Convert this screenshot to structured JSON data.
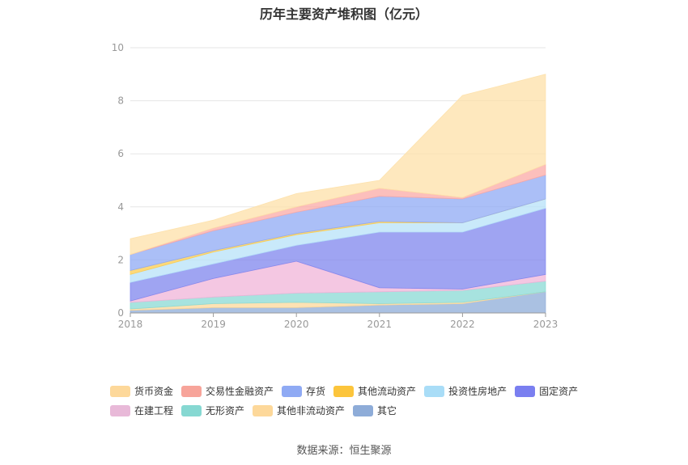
{
  "title": "历年主要资产堆积图（亿元）",
  "source": "数据来源：恒生聚源",
  "chart_data": {
    "type": "area",
    "stacked": true,
    "categories": [
      "2018",
      "2019",
      "2020",
      "2021",
      "2022",
      "2023"
    ],
    "ylim": [
      0,
      10
    ],
    "yticks": [
      "0",
      "2",
      "4",
      "6",
      "8",
      "10"
    ],
    "grid": true,
    "legend_position": "bottom",
    "series": [
      {
        "name": "其它",
        "color": "#8eacd8",
        "values": [
          0.1,
          0.2,
          0.2,
          0.3,
          0.35,
          0.8
        ]
      },
      {
        "name": "其他非流动资产",
        "color": "#fdd89a",
        "values": [
          0.05,
          0.15,
          0.2,
          0.05,
          0.05,
          0.0
        ]
      },
      {
        "name": "无形资产",
        "color": "#8ad9d4",
        "values": [
          0.25,
          0.25,
          0.35,
          0.45,
          0.45,
          0.4
        ]
      },
      {
        "name": "在建工程",
        "color": "#f0b4d8",
        "values": [
          0.05,
          0.7,
          1.2,
          0.15,
          0.05,
          0.25
        ]
      },
      {
        "name": "固定资产",
        "color": "#7f86ee",
        "values": [
          0.7,
          0.55,
          0.6,
          2.1,
          2.15,
          2.5
        ]
      },
      {
        "name": "投资性房地产",
        "color": "#b7e1f8",
        "values": [
          0.3,
          0.45,
          0.4,
          0.35,
          0.35,
          0.35
        ]
      },
      {
        "name": "其他流动资产",
        "color": "#fccc4e",
        "values": [
          0.15,
          0.05,
          0.05,
          0.05,
          0.0,
          0.0
        ]
      },
      {
        "name": "存货",
        "color": "#8faaf4",
        "values": [
          0.6,
          0.75,
          0.8,
          0.95,
          0.9,
          0.9
        ]
      },
      {
        "name": "交易性金融资产",
        "color": "#fbaaa6",
        "values": [
          0.0,
          0.1,
          0.2,
          0.3,
          0.05,
          0.4
        ]
      },
      {
        "name": "货币资金",
        "color": "#fde0a8",
        "values": [
          0.6,
          0.3,
          0.5,
          0.3,
          3.85,
          3.4
        ]
      }
    ]
  },
  "legend": {
    "rows": [
      [
        {
          "label": "货币资金",
          "color": "#fdd89a"
        },
        {
          "label": "交易性金融资产",
          "color": "#f7a49a"
        },
        {
          "label": "存货",
          "color": "#8faaf4"
        },
        {
          "label": "其他流动资产",
          "color": "#fcc53c"
        },
        {
          "label": "投资性房地产",
          "color": "#a9ddf7"
        },
        {
          "label": "固定资产",
          "color": "#7a7ff0"
        }
      ],
      [
        {
          "label": "在建工程",
          "color": "#e8b9d8"
        },
        {
          "label": "无形资产",
          "color": "#86d8d2"
        },
        {
          "label": "其他非流动资产",
          "color": "#fdd89a"
        },
        {
          "label": "其它",
          "color": "#8eacd8"
        }
      ]
    ]
  }
}
